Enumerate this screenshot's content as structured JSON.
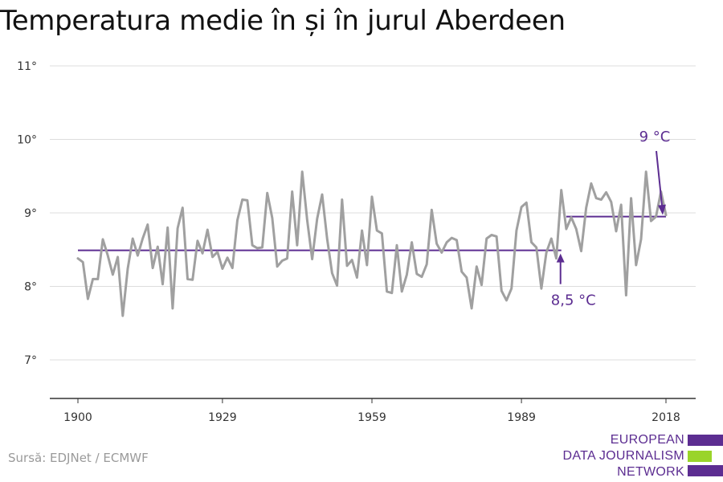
{
  "title": "Temperatura medie în și în jurul Aberdeen",
  "source": "Sursă: EDJNet / ECMWF",
  "logo": {
    "lines": [
      "EUROPEAN",
      "DATA JOURNALISM",
      "NETWORK"
    ],
    "colors": [
      "#5c2d91",
      "#9ad42a",
      "#5c2d91"
    ]
  },
  "colors": {
    "line": "#a0a0a0",
    "average": "#5c2d91",
    "grid": "#dddddd",
    "axis": "#333333"
  },
  "chart_data": {
    "type": "line",
    "title": "Temperatura medie în și în jurul Aberdeen",
    "xlabel": "",
    "ylabel": "",
    "xlim": [
      1900,
      2019
    ],
    "ylim": [
      6.5,
      11.2
    ],
    "x_ticks": [
      1900,
      1929,
      1959,
      1989,
      2018
    ],
    "y_ticks": [
      7,
      8,
      9,
      10,
      11
    ],
    "y_tick_labels": [
      "7°",
      "8°",
      "9°",
      "10°",
      "11°"
    ],
    "grid": true,
    "x_start": 1900,
    "series": [
      {
        "values": [
          8.38,
          8.33,
          7.83,
          8.1,
          8.1,
          8.64,
          8.42,
          8.16,
          8.4,
          7.6,
          8.24,
          8.65,
          8.42,
          8.65,
          8.84,
          8.25,
          8.54,
          8.03,
          8.8,
          7.7,
          8.79,
          9.07,
          8.1,
          8.09,
          8.62,
          8.45,
          8.77,
          8.4,
          8.47,
          8.24,
          8.39,
          8.25,
          8.9,
          9.18,
          9.17,
          8.56,
          8.52,
          8.53,
          9.27,
          8.93,
          8.27,
          8.35,
          8.38,
          9.29,
          8.56,
          9.56,
          8.9,
          8.37,
          8.92,
          9.25,
          8.65,
          8.18,
          8.01,
          9.18,
          8.28,
          8.36,
          8.12,
          8.76,
          8.29,
          9.22,
          8.76,
          8.72,
          7.93,
          7.91,
          8.56,
          7.93,
          8.16,
          8.6,
          8.17,
          8.13,
          8.3,
          9.04,
          8.58,
          8.46,
          8.6,
          8.66,
          8.63,
          8.2,
          8.12,
          7.7,
          8.27,
          8.02,
          8.65,
          8.7,
          8.68,
          7.94,
          7.81,
          7.97,
          8.76,
          9.08,
          9.14,
          8.6,
          8.53,
          7.97,
          8.46,
          8.65,
          8.38,
          9.31,
          8.78,
          8.94,
          8.78,
          8.48,
          9.07,
          9.4,
          9.2,
          9.18,
          9.28,
          9.15,
          8.75,
          9.11,
          7.88,
          9.2,
          8.29,
          8.64,
          9.56,
          8.89,
          8.95,
          9.29,
          8.97
        ]
      }
    ],
    "averages": [
      {
        "label": "8,5 °C",
        "value": 8.49,
        "from": 1900,
        "to": 1997
      },
      {
        "label": "9 °C",
        "value": 8.95,
        "from": 1998,
        "to": 2018
      }
    ]
  }
}
